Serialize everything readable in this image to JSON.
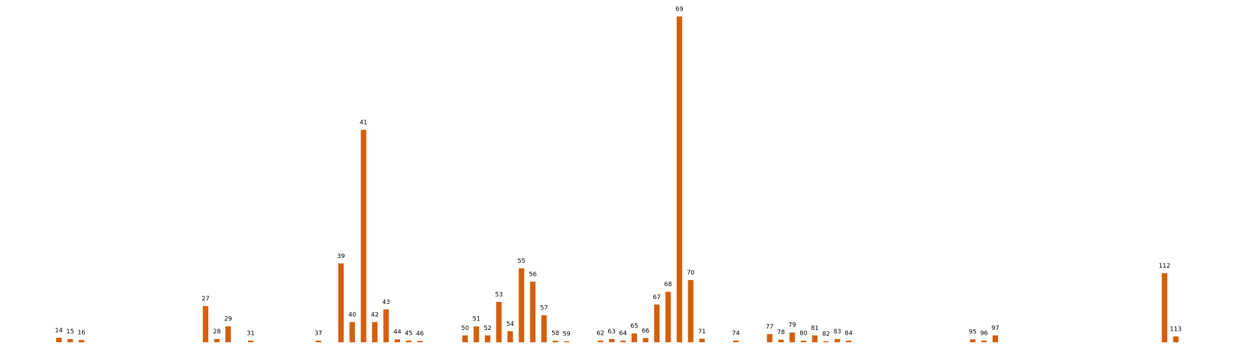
{
  "chart_data": {
    "type": "bar",
    "title": "",
    "xlabel": "",
    "ylabel": "",
    "grid": false,
    "legend": "none",
    "bar_color": "#d35f0e",
    "label_color": "#000000",
    "ylim": [
      0,
      1000
    ],
    "categories": [
      "14",
      "15",
      "16",
      "27",
      "28",
      "29",
      "31",
      "37",
      "39",
      "40",
      "41",
      "42",
      "43",
      "44",
      "45",
      "46",
      "50",
      "51",
      "52",
      "53",
      "54",
      "55",
      "56",
      "57",
      "58",
      "59",
      "62",
      "63",
      "64",
      "65",
      "66",
      "67",
      "68",
      "69",
      "70",
      "71",
      "74",
      "77",
      "78",
      "79",
      "80",
      "81",
      "82",
      "83",
      "84",
      "95",
      "96",
      "97",
      "112",
      "113"
    ],
    "values": [
      14,
      10,
      7,
      111,
      10,
      49,
      5,
      5,
      242,
      62,
      652,
      62,
      101,
      9,
      5,
      4,
      21,
      49,
      21,
      124,
      34,
      227,
      186,
      83,
      5,
      3,
      5,
      10,
      5,
      27,
      13,
      116,
      155,
      1000,
      191,
      11,
      5,
      25,
      8,
      30,
      5,
      21,
      3,
      10,
      5,
      9,
      5,
      21,
      212,
      18
    ],
    "labels": [
      "14",
      "15",
      "16",
      "27",
      "28",
      "29",
      "31",
      "37",
      "39",
      "40",
      "41",
      "42",
      "43",
      "44",
      "45",
      "46",
      "50",
      "51",
      "52",
      "53",
      "54",
      "55",
      "56",
      "57",
      "58",
      "59",
      "62",
      "63",
      "64",
      "65",
      "66",
      "67",
      "68",
      "69",
      "70",
      "71",
      "74",
      "77",
      "78",
      "79",
      "80",
      "81",
      "82",
      "83",
      "84",
      "95",
      "96",
      "97",
      "112",
      "113"
    ]
  }
}
